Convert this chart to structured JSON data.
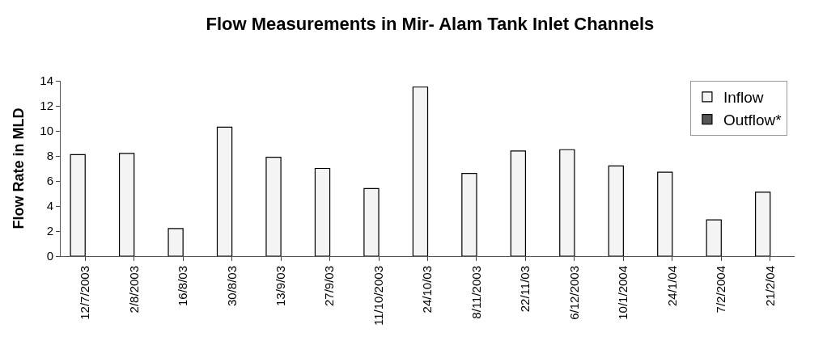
{
  "chart_data": {
    "type": "bar",
    "title": "Flow Measurements in Mir- Alam Tank Inlet Channels",
    "ylabel": "Flow Rate in MLD",
    "categories": [
      "12/7/2003",
      "2/8/2003",
      "16/8/03",
      "30/8/03",
      "13/9/03",
      "27/9/03",
      "11/10/2003",
      "24/10/03",
      "8/11/2003",
      "22/11/03",
      "6/12/2003",
      "10/1/2004",
      "24/1/04",
      "7/2/2004",
      "21/2/04"
    ],
    "series": [
      {
        "name": "Inflow",
        "color": "#f4f4f4",
        "values": [
          8.1,
          8.2,
          2.2,
          10.3,
          7.9,
          7.0,
          5.4,
          13.5,
          6.6,
          8.4,
          8.5,
          7.2,
          6.7,
          2.9,
          5.1
        ]
      },
      {
        "name": "Outflow*",
        "color": "#555555",
        "values": [
          null,
          null,
          null,
          null,
          null,
          null,
          null,
          null,
          null,
          null,
          null,
          null,
          null,
          null,
          null
        ]
      }
    ],
    "ylim": [
      0,
      14
    ],
    "yticks": [
      0,
      2,
      4,
      6,
      8,
      10,
      12,
      14
    ],
    "legend": "top right"
  }
}
